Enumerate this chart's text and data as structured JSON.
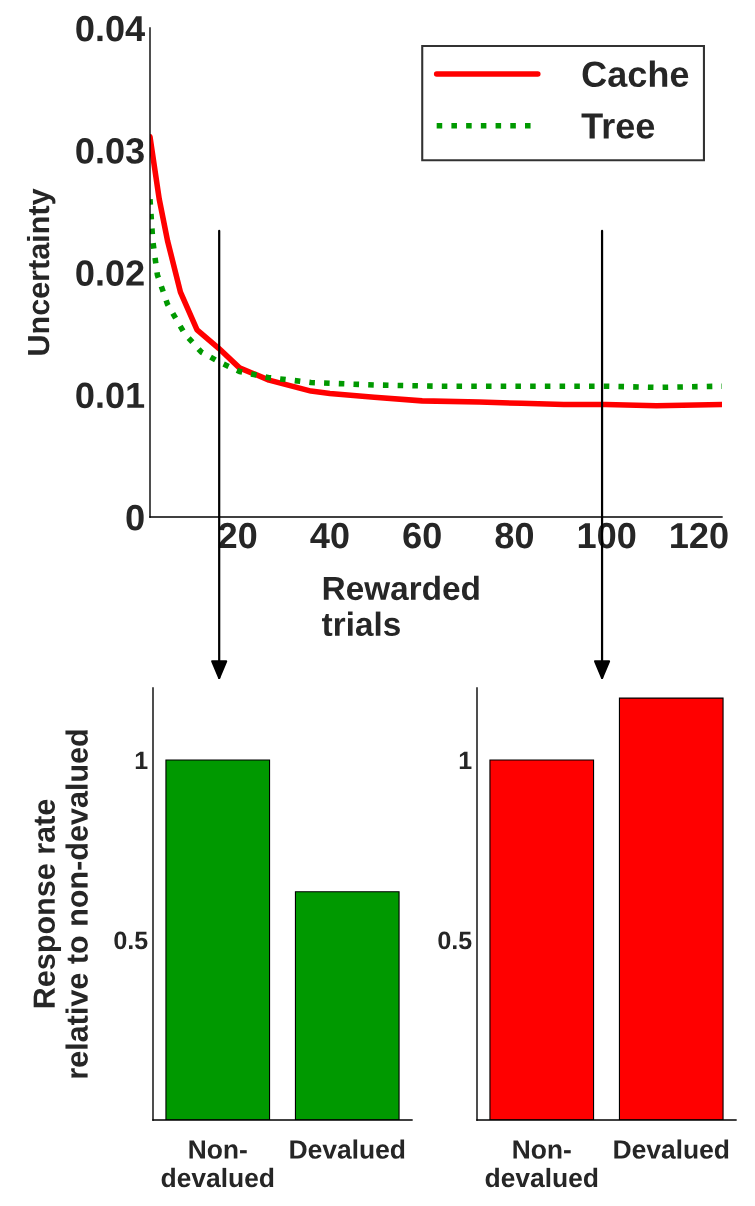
{
  "chart_data": [
    {
      "type": "line",
      "xlabel": "Rewarded\ntrials",
      "ylabel": "Uncertainty",
      "xlim": [
        1,
        125
      ],
      "xticks": [
        20,
        40,
        60,
        80,
        100,
        120
      ],
      "ylim": [
        0,
        0.04
      ],
      "yticks": [
        0,
        0.01,
        0.02,
        0.03,
        0.04
      ],
      "legend": "top right",
      "grid": false,
      "series": [
        {
          "name": "Cache",
          "color": "#ff0000",
          "line_style": "solid",
          "x": [
            1,
            3,
            4.8,
            7.6,
            11.2,
            15.9,
            20.4,
            26.8,
            35.9,
            40,
            49.6,
            60,
            72.4,
            81.5,
            90.7,
            99.8,
            110.8,
            125
          ],
          "values": [
            0.0311,
            0.026,
            0.0226,
            0.0184,
            0.0153,
            0.0138,
            0.0122,
            0.0112,
            0.0103,
            0.0101,
            0.0098,
            0.0095,
            0.0094,
            0.0093,
            0.0092,
            0.0092,
            0.0091,
            0.0092
          ]
        },
        {
          "name": "Tree",
          "color": "#009900",
          "line_style": "dotted",
          "x": [
            1,
            1.6,
            2.6,
            4.8,
            8.5,
            12.1,
            15.9,
            20.4,
            26.8,
            35.9,
            49.6,
            63.3,
            81.5,
            99.8,
            110.8,
            125
          ],
          "values": [
            0.026,
            0.0226,
            0.0198,
            0.0174,
            0.015,
            0.0135,
            0.0127,
            0.0119,
            0.0114,
            0.011,
            0.0108,
            0.0107,
            0.0107,
            0.0107,
            0.0106,
            0.0107
          ]
        }
      ],
      "ref_lines": [
        {
          "axis": "x",
          "value": 16
        },
        {
          "axis": "x",
          "value": 99
        }
      ]
    },
    {
      "type": "bar",
      "ylabel": "Response rate\nrelative to non-devalued",
      "categories": [
        "Non-\ndevalued",
        "Devalued"
      ],
      "values": [
        1,
        0.634
      ],
      "color": "#009900",
      "ylim": [
        0,
        1.2
      ],
      "yticks": [
        0.5,
        1
      ],
      "grid": false
    },
    {
      "type": "bar",
      "categories": [
        "Non-\ndevalued",
        "Devalued"
      ],
      "values": [
        1,
        1.172
      ],
      "color": "#ff0000",
      "ylim": [
        0,
        1.2
      ],
      "yticks": [
        0.5,
        1
      ],
      "grid": false
    }
  ]
}
